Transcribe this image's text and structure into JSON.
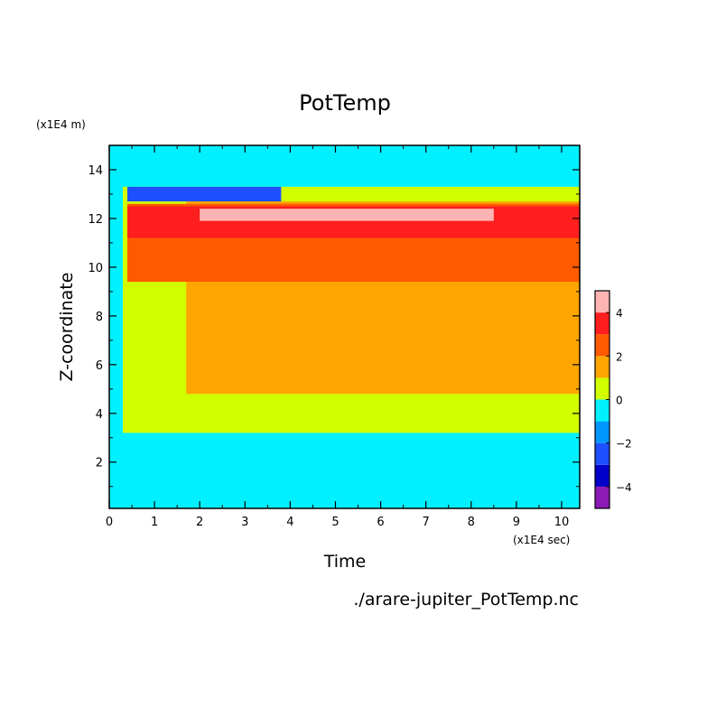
{
  "chart_data": {
    "type": "heatmap",
    "title": "PotTemp",
    "xlabel": "Time",
    "ylabel": "Z-coordinate",
    "x_unit_label": "(x1E4 sec)",
    "y_unit_label": "(x1E4 m)",
    "footer": "./arare-jupiter_PotTemp.nc",
    "xlim": [
      0,
      10.4
    ],
    "ylim": [
      0.1,
      15
    ],
    "x_ticks": [
      0,
      1,
      2,
      3,
      4,
      5,
      6,
      7,
      8,
      9,
      10
    ],
    "x_tick_labels": [
      "0",
      "1",
      "2",
      "3",
      "4",
      "5",
      "6",
      "7",
      "8",
      "9",
      "10"
    ],
    "y_ticks": [
      2,
      4,
      6,
      8,
      10,
      12,
      14
    ],
    "y_tick_labels": [
      "2",
      "4",
      "6",
      "8",
      "10",
      "12",
      "14"
    ],
    "colorbar": {
      "min": -5,
      "max": 5,
      "levels": [
        -5,
        -4,
        -3,
        -2,
        -1,
        0,
        1,
        2,
        3,
        4,
        5
      ],
      "colors": [
        "#8c1ab4",
        "#0000c8",
        "#1e50ff",
        "#0096ff",
        "#00f0ff",
        "#d2ff00",
        "#ffa500",
        "#ff5a00",
        "#ff1e1e",
        "#ffb4b4"
      ],
      "tick_values": [
        -4,
        -2,
        0,
        2,
        4
      ],
      "tick_labels": [
        "−4",
        "−2",
        "0",
        "2",
        "4"
      ]
    },
    "regions": [
      {
        "level": 0,
        "t_start": 0,
        "t_end": 10.4,
        "z_bottom": 0.1,
        "z_top": 15,
        "color": "#00f0ff"
      },
      {
        "level": 1,
        "t_start": 0.3,
        "t_end": 10.4,
        "z_bottom": 3.2,
        "z_top": 13.3,
        "color": "#d2ff00"
      },
      {
        "level": 2,
        "t_start": 1.7,
        "t_end": 10.4,
        "z_bottom": 4.8,
        "z_top": 12.7,
        "color": "#ffa500"
      },
      {
        "level": 3,
        "t_start": 0.4,
        "t_end": 10.4,
        "z_bottom": 9.4,
        "z_top": 12.6,
        "color": "#ff5a00"
      },
      {
        "level": 4,
        "t_start": 0.4,
        "t_end": 10.4,
        "z_bottom": 11.2,
        "z_top": 12.5,
        "color": "#ff1e1e"
      },
      {
        "level": 5,
        "t_start": 2.0,
        "t_end": 8.5,
        "z_bottom": 11.9,
        "z_top": 12.4,
        "color": "#ffb4b4"
      },
      {
        "level": -2,
        "t_start": 0.4,
        "t_end": 3.8,
        "z_bottom": 12.7,
        "z_top": 13.3,
        "color": "#1e50ff"
      }
    ]
  }
}
